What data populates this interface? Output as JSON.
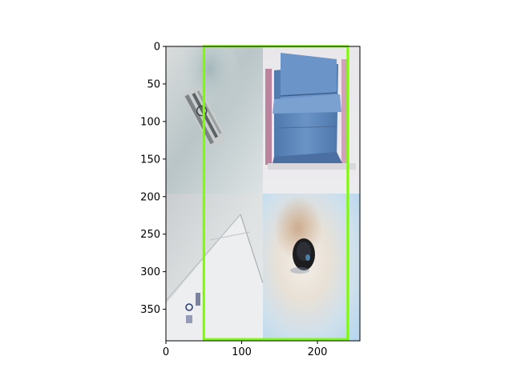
{
  "chart_data": {
    "type": "image",
    "xlim": [
      0,
      256
    ],
    "ylim": [
      392,
      0
    ],
    "x_ticks": [
      0,
      100,
      200
    ],
    "y_ticks": [
      0,
      50,
      100,
      150,
      200,
      250,
      300,
      350
    ],
    "tick_labels_x": [
      "0",
      "100",
      "200"
    ],
    "tick_labels_y": [
      "0",
      "50",
      "100",
      "150",
      "200",
      "250",
      "300",
      "350"
    ],
    "tiles": [
      {
        "name": "foil-packet-photo",
        "col": 0,
        "row": 0,
        "x": [
          0,
          128
        ],
        "y": [
          0,
          196
        ]
      },
      {
        "name": "blue-paper-bag-photo",
        "col": 1,
        "row": 0,
        "x": [
          128,
          256
        ],
        "y": [
          0,
          196
        ]
      },
      {
        "name": "paper-card-photo",
        "col": 0,
        "row": 1,
        "x": [
          0,
          128
        ],
        "y": [
          196,
          392
        ]
      },
      {
        "name": "dark-button-photo",
        "col": 1,
        "row": 1,
        "x": [
          128,
          256
        ],
        "y": [
          196,
          392
        ]
      }
    ],
    "boxes": [
      {
        "x0": 50,
        "y0": 0,
        "x1": 240,
        "y1": 390,
        "color": "#7cfc00"
      }
    ],
    "grid": false,
    "title": "",
    "xlabel": "",
    "ylabel": ""
  }
}
